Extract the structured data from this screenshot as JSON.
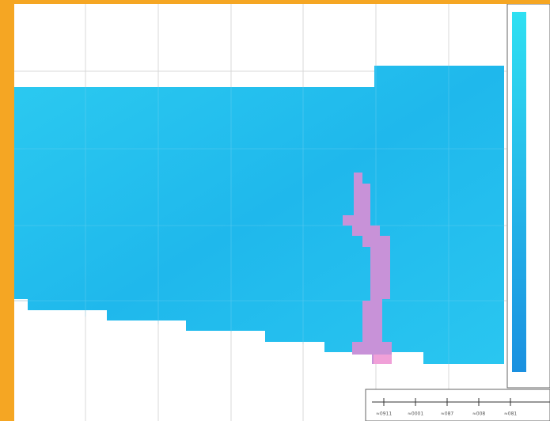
{
  "scale_bar": {
    "labels": [
      "≈0911",
      "≈0001",
      "≈087",
      "≈008",
      "≈081"
    ]
  }
}
